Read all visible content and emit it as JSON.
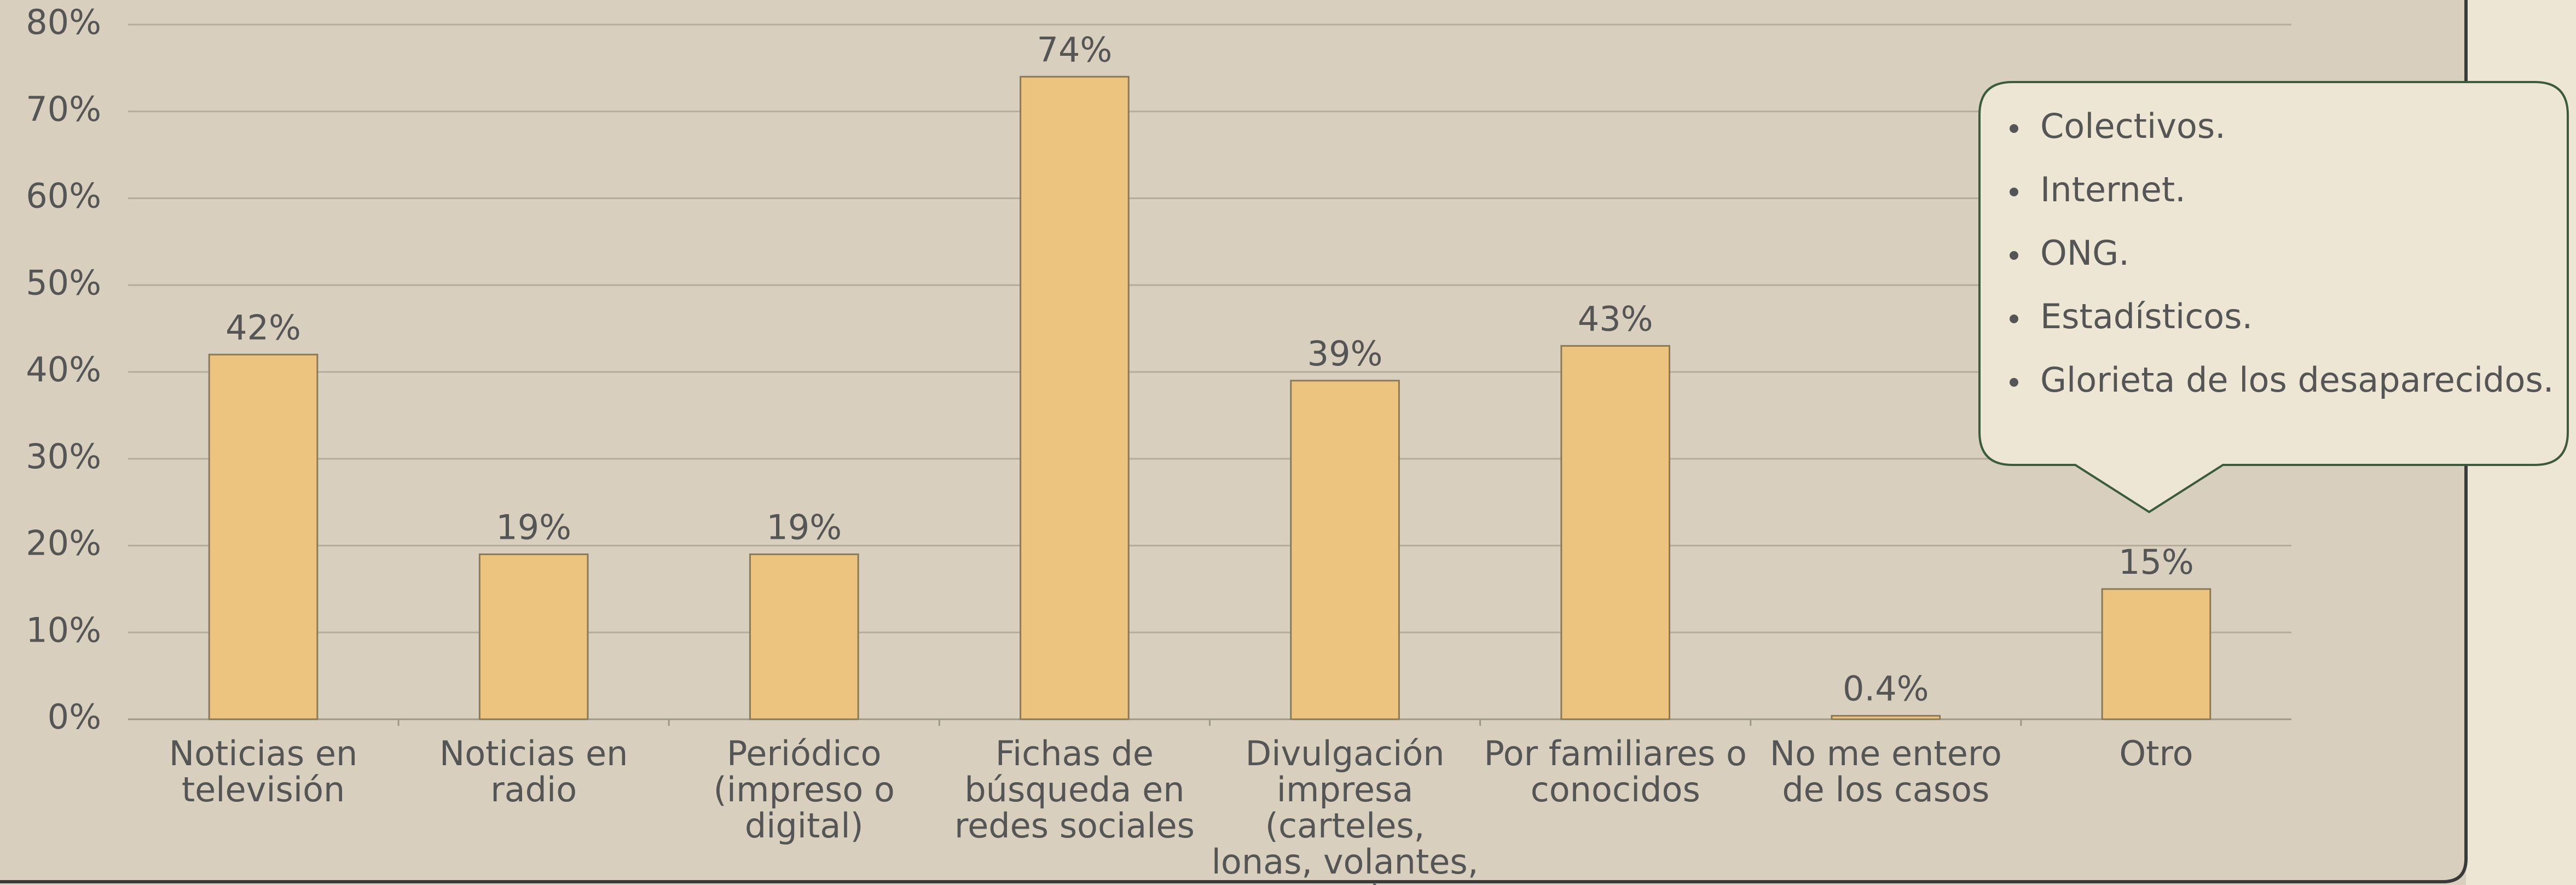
{
  "chart_data": {
    "type": "bar",
    "categories": [
      "Noticias en televisión",
      "Noticias en radio",
      "Periódico (impreso o digital)",
      "Fichas de búsqueda en redes sociales",
      "Divulgación impresa (carteles, lonas, volantes, etc.)",
      "Por familiares o conocidos",
      "No me entero de los casos",
      "Otro"
    ],
    "values": [
      42,
      19,
      19,
      74,
      39,
      43,
      0.4,
      15
    ],
    "value_labels": [
      "42%",
      "19%",
      "19%",
      "74%",
      "39%",
      "43%",
      "0.4%",
      "15%"
    ],
    "color": "#ecc47f",
    "ylim": [
      0,
      80
    ],
    "yticks": [
      {
        "value": 0,
        "label": "0%"
      },
      {
        "value": 10,
        "label": "10%"
      },
      {
        "value": 20,
        "label": "20%"
      },
      {
        "value": 30,
        "label": "30%"
      },
      {
        "value": 40,
        "label": "40%"
      },
      {
        "value": 50,
        "label": "50%"
      },
      {
        "value": 60,
        "label": "60%"
      },
      {
        "value": 70,
        "label": "70%"
      },
      {
        "value": 80,
        "label": "80%"
      }
    ],
    "grid": true,
    "annotations": [
      "Colectivos.",
      "Internet.",
      "ONG.",
      "Estadísticos.",
      "Glorieta de los desaparecidos."
    ]
  }
}
